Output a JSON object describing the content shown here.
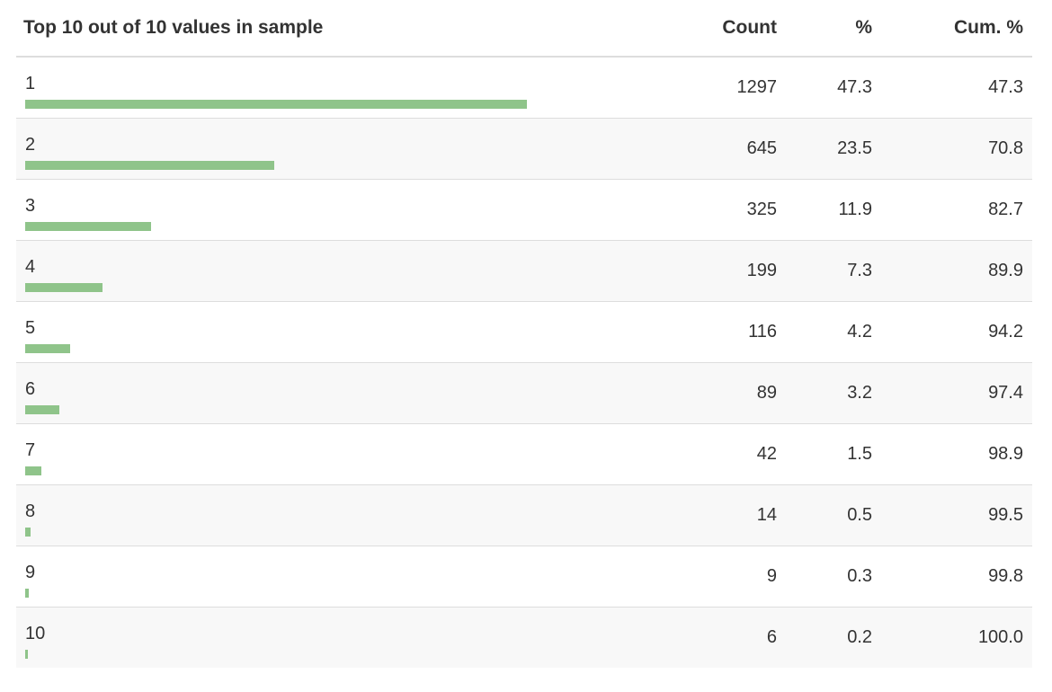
{
  "header": {
    "value_label": "Top 10 out of 10 values in sample",
    "count_label": "Count",
    "pct_label": "%",
    "cum_label": "Cum. %"
  },
  "chart_data": {
    "type": "table",
    "bar_color": "#8fc48a",
    "columns": [
      "Top 10 out of 10 values in sample",
      "Count",
      "%",
      "Cum. %"
    ],
    "rows": [
      {
        "value": "1",
        "count": "1297",
        "pct": "47.3",
        "cum": "47.3"
      },
      {
        "value": "2",
        "count": "645",
        "pct": "23.5",
        "cum": "70.8"
      },
      {
        "value": "3",
        "count": "325",
        "pct": "11.9",
        "cum": "82.7"
      },
      {
        "value": "4",
        "count": "199",
        "pct": "7.3",
        "cum": "89.9"
      },
      {
        "value": "5",
        "count": "116",
        "pct": "4.2",
        "cum": "94.2"
      },
      {
        "value": "6",
        "count": "89",
        "pct": "3.2",
        "cum": "97.4"
      },
      {
        "value": "7",
        "count": "42",
        "pct": "1.5",
        "cum": "98.9"
      },
      {
        "value": "8",
        "count": "14",
        "pct": "0.5",
        "cum": "99.5"
      },
      {
        "value": "9",
        "count": "9",
        "pct": "0.3",
        "cum": "99.8"
      },
      {
        "value": "10",
        "count": "6",
        "pct": "0.2",
        "cum": "100.0"
      }
    ]
  }
}
